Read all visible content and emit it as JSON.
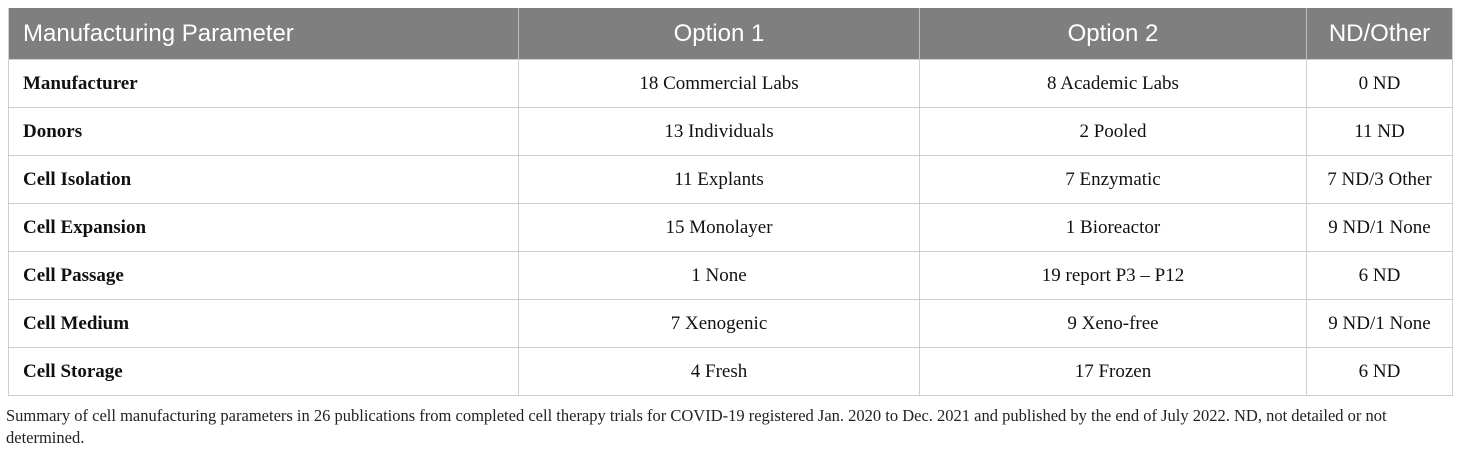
{
  "table": {
    "headers": [
      "Manufacturing Parameter",
      "Option 1",
      "Option 2",
      "ND/Other"
    ],
    "rows": [
      [
        "Manufacturer",
        "18 Commercial Labs",
        "8 Academic Labs",
        "0 ND"
      ],
      [
        "Donors",
        "13 Individuals",
        "2 Pooled",
        "11 ND"
      ],
      [
        "Cell Isolation",
        "11 Explants",
        "7 Enzymatic",
        "7 ND/3 Other"
      ],
      [
        "Cell Expansion",
        "15 Monolayer",
        "1 Bioreactor",
        "9 ND/1 None"
      ],
      [
        "Cell Passage",
        "1 None",
        "19 report P3 – P12",
        "6 ND"
      ],
      [
        "Cell Medium",
        "7 Xenogenic",
        "9 Xeno-free",
        "9 ND/1 None"
      ],
      [
        "Cell Storage",
        "4 Fresh",
        "17 Frozen",
        "6 ND"
      ]
    ]
  },
  "caption": "Summary of cell manufacturing parameters in 26 publications from completed cell therapy trials for COVID-19 registered Jan. 2020 to Dec. 2021 and published by the end of July 2022. ND, not detailed or not determined.",
  "colors": {
    "header_background": "#7f7f7f",
    "header_text": "#ffffff",
    "grid_line": "#cfcfcf"
  }
}
